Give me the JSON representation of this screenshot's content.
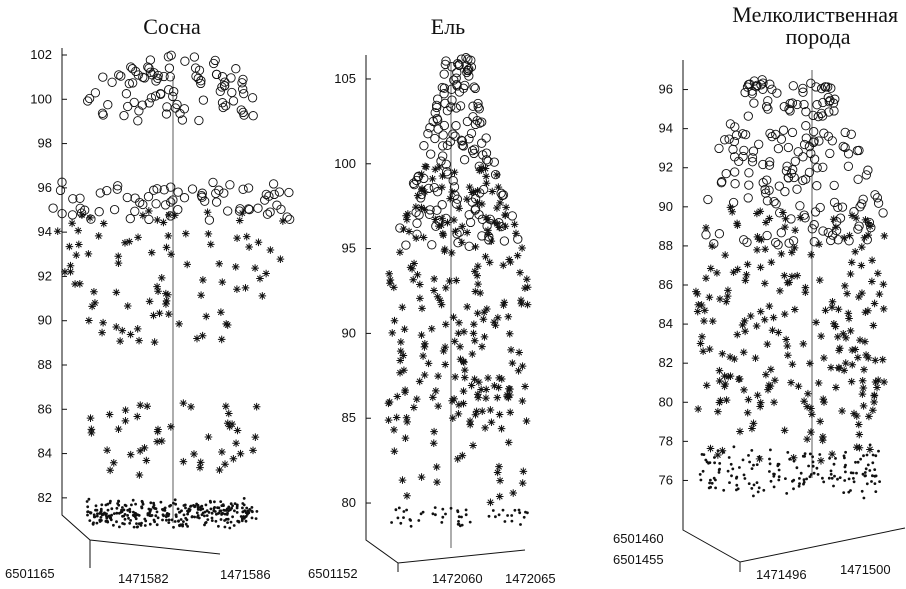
{
  "chart_data": [
    {
      "type": "scatter",
      "title": "Сосна",
      "z_ticks": [
        "82",
        "84",
        "86",
        "88",
        "90",
        "92",
        "94",
        "96",
        "98",
        "100",
        "102"
      ],
      "zlim": [
        81,
        102
      ],
      "base_ticks": [
        "6501165",
        "1471582",
        "1471586"
      ],
      "clusters": [
        {
          "marker": "circle",
          "z": [
            99,
            102
          ],
          "count": 90
        },
        {
          "marker": "circle",
          "z": [
            94.5,
            96.3
          ],
          "count": 70
        },
        {
          "marker": "star",
          "z": [
            89,
            95
          ],
          "count": 90
        },
        {
          "marker": "star",
          "z": [
            83,
            86.5
          ],
          "count": 45
        },
        {
          "marker": "dot",
          "z": [
            81,
            81.6
          ],
          "count": 320
        }
      ]
    },
    {
      "type": "scatter",
      "title": "Ель",
      "z_ticks": [
        "80",
        "85",
        "90",
        "95",
        "100",
        "105"
      ],
      "zlim": [
        79,
        106
      ],
      "base_ticks": [
        "6501152",
        "1472060",
        "1472065"
      ],
      "clusters": [
        {
          "marker": "circle",
          "z": [
            95,
            106.5
          ],
          "count": 150
        },
        {
          "marker": "star",
          "z": [
            85,
            100
          ],
          "count": 220
        },
        {
          "marker": "star",
          "z": [
            80,
            85
          ],
          "count": 30
        },
        {
          "marker": "dot",
          "z": [
            79,
            79.5
          ],
          "count": 50
        }
      ]
    },
    {
      "type": "scatter",
      "title": "Мелколиственная\nпорода",
      "z_ticks": [
        "76",
        "78",
        "80",
        "82",
        "84",
        "86",
        "88",
        "90",
        "92",
        "94",
        "96"
      ],
      "zlim": [
        75,
        97
      ],
      "base_ticks": [
        "6501460",
        "6501455",
        "1471496",
        "1471500"
      ],
      "clusters": [
        {
          "marker": "circle",
          "z": [
            88,
            96.5
          ],
          "count": 190
        },
        {
          "marker": "star",
          "z": [
            79,
            90
          ],
          "count": 210
        },
        {
          "marker": "star",
          "z": [
            77,
            79
          ],
          "count": 20
        },
        {
          "marker": "dot",
          "z": [
            75.5,
            77.5
          ],
          "count": 160
        }
      ]
    }
  ]
}
